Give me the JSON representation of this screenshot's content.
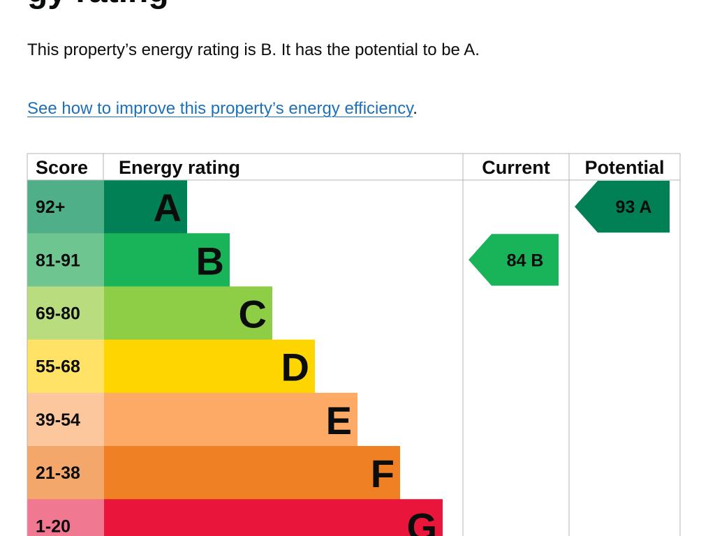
{
  "heading_fragment": "gy rating",
  "summary": "This property’s energy rating is B. It has the potential to be A.",
  "improve_link": "See how to improve this property’s energy efficiency",
  "improve_suffix": ".",
  "chart_data": {
    "type": "bar",
    "headers": [
      "Score",
      "Energy rating",
      "Current",
      "Potential"
    ],
    "bands": [
      {
        "score": "92+",
        "letter": "A",
        "color": "#008054",
        "score_color": "#4faf88"
      },
      {
        "score": "81-91",
        "letter": "B",
        "color": "#19b459",
        "score_color": "#6fc58f"
      },
      {
        "score": "69-80",
        "letter": "C",
        "color": "#8dce46",
        "score_color": "#b8dc7e"
      },
      {
        "score": "55-68",
        "letter": "D",
        "color": "#ffd500",
        "score_color": "#ffe266"
      },
      {
        "score": "39-54",
        "letter": "E",
        "color": "#fcaa65",
        "score_color": "#fdc79d"
      },
      {
        "score": "21-38",
        "letter": "F",
        "color": "#ef8023",
        "score_color": "#f4a76a"
      },
      {
        "score": "1-20",
        "letter": "G",
        "color": "#e9153b",
        "score_color": "#f07890"
      }
    ],
    "current": {
      "value": 84,
      "letter": "B"
    },
    "potential": {
      "value": 93,
      "letter": "A"
    },
    "indicator_colors": {
      "current": "#19b459",
      "potential": "#008054"
    },
    "text_color": "#0b0c0c",
    "border_color": "#b1b4b6"
  }
}
